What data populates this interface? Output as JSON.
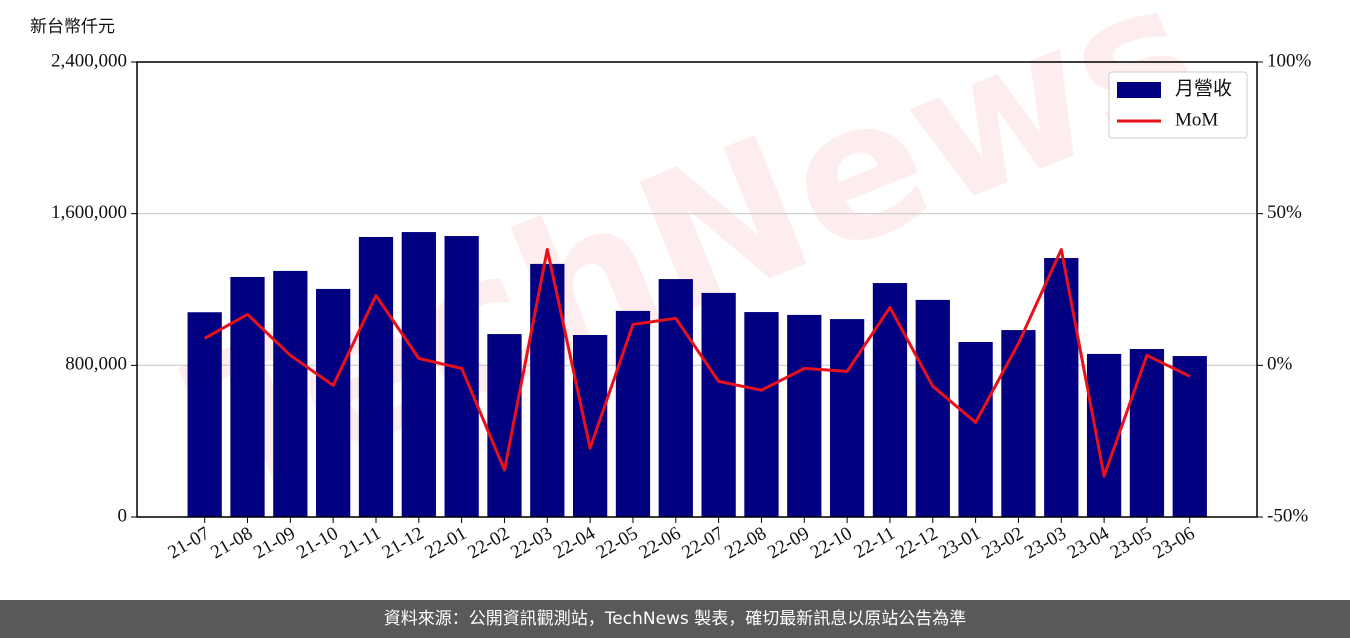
{
  "chart_data": {
    "type": "bar_line",
    "y_label": "新台幣仟元",
    "watermark": "TechNews",
    "categories": [
      "21-07",
      "21-08",
      "21-09",
      "21-10",
      "21-11",
      "21-12",
      "22-01",
      "22-02",
      "22-03",
      "22-04",
      "22-05",
      "22-06",
      "22-07",
      "22-08",
      "22-09",
      "22-10",
      "22-11",
      "22-12",
      "23-01",
      "23-02",
      "23-03",
      "23-04",
      "23-05",
      "23-06"
    ],
    "series": [
      {
        "name": "月營收",
        "type": "bar",
        "color": "#000080",
        "values": [
          1080000,
          1266000,
          1298000,
          1203000,
          1477000,
          1503000,
          1482000,
          965000,
          1335000,
          960000,
          1087000,
          1255000,
          1182000,
          1081000,
          1066000,
          1044000,
          1234000,
          1145000,
          923000,
          986000,
          1366000,
          860000,
          886000,
          849000
        ]
      },
      {
        "name": "MoM",
        "type": "line",
        "axis": "y2",
        "color": "#e8111b",
        "values": [
          8.9,
          16.8,
          3.3,
          -6.6,
          23.0,
          2.3,
          -1.0,
          -34.5,
          38.2,
          -27.3,
          13.5,
          15.5,
          -5.3,
          -8.2,
          -1.0,
          -2.0,
          19.1,
          -6.9,
          -18.8,
          7.2,
          38.2,
          -36.5,
          3.3,
          -3.6
        ]
      }
    ],
    "ylim": [
      0,
      2400000
    ],
    "yticks": [
      0,
      {
        "value": 800000,
        "label": "800,000"
      },
      {
        "value": 1600000,
        "label": "1,600,000"
      },
      {
        "value": 2400000,
        "label": "2,400,000"
      }
    ],
    "y2lim": [
      -50,
      100
    ],
    "y2ticks": [
      {
        "value": -50,
        "label": "-50%"
      },
      {
        "value": 0,
        "label": "0%"
      },
      {
        "value": 50,
        "label": "50%"
      },
      {
        "value": 100,
        "label": "100%"
      }
    ],
    "grid": true,
    "legend": "upper right",
    "footer": "資料來源：公開資訊觀測站，TechNews 製表，確切最新訊息以原站公告為準"
  }
}
